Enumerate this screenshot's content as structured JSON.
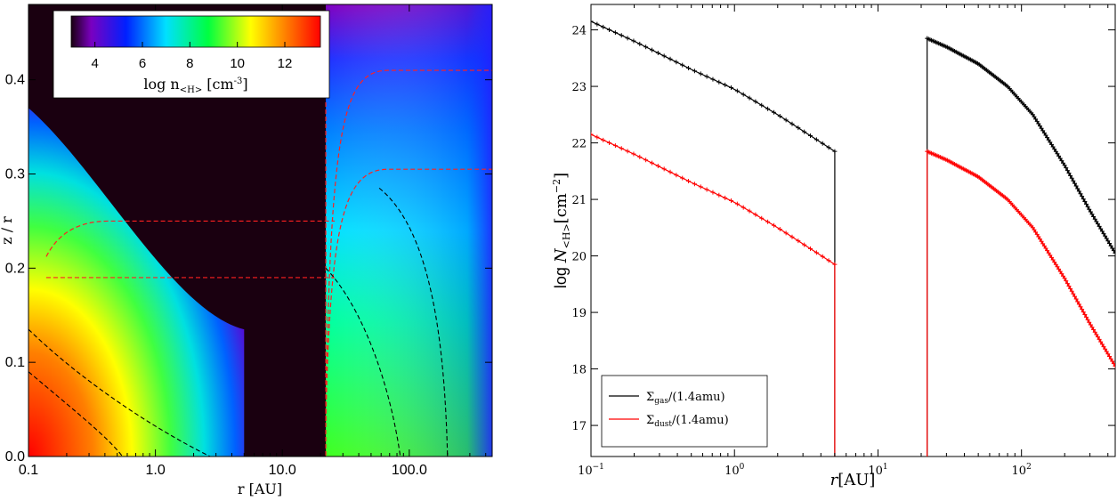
{
  "chart_data": [
    {
      "type": "heatmap",
      "xlabel": "r [AU]",
      "ylabel": "z / r",
      "x_scale": "log",
      "xlim": [
        0.1,
        450
      ],
      "ylim": [
        0.0,
        0.48
      ],
      "x_ticks": [
        "0.1",
        "1.0",
        "10.0",
        "100.0"
      ],
      "y_ticks": [
        "0.0",
        "0.1",
        "0.2",
        "0.3",
        "0.4"
      ],
      "gap_au": [
        5,
        22
      ],
      "colorbar": {
        "label_main": "log n",
        "label_sub": "<H>",
        "label_unit": " [cm",
        "label_exp": "-3",
        "label_close": "]",
        "range": [
          3,
          13.5
        ],
        "ticks": [
          "4",
          "6",
          "8",
          "10",
          "12"
        ],
        "colormap": "rainbow"
      },
      "background_color": "#1a0010",
      "contour_colors": {
        "red": "#ff2020",
        "black": "#000000"
      }
    },
    {
      "type": "line",
      "xlabel": "r[AU]",
      "ylabel_main": "log ",
      "ylabel_n": "N",
      "ylabel_sub": "<H>",
      "ylabel_unit": "[cm",
      "ylabel_exp": "−2",
      "ylabel_close": "]",
      "x_scale": "log",
      "xlim": [
        0.1,
        450
      ],
      "ylim": [
        16.45,
        24.45
      ],
      "x_ticks": [
        {
          "base": "10",
          "exp": "−1"
        },
        {
          "base": "10",
          "exp": "0"
        },
        {
          "base": "10",
          "exp": "1"
        },
        {
          "base": "10",
          "exp": "2"
        }
      ],
      "y_ticks": [
        "17",
        "18",
        "19",
        "20",
        "21",
        "22",
        "23",
        "24"
      ],
      "series": [
        {
          "name_main": "Σ",
          "name_sub": "gas",
          "name_rest": "/(1.4amu)",
          "color": "#000000",
          "segments": [
            {
              "x": [
                0.1,
                0.2,
                0.5,
                1.0,
                2.0,
                5.0
              ],
              "y": [
                24.15,
                23.8,
                23.3,
                22.95,
                22.5,
                21.85
              ]
            },
            {
              "x": [
                22,
                30,
                50,
                80,
                120,
                200,
                300,
                450
              ],
              "y": [
                23.85,
                23.7,
                23.4,
                23.0,
                22.5,
                21.6,
                20.8,
                20.05
              ]
            }
          ]
        },
        {
          "name_main": "Σ",
          "name_sub": "dust",
          "name_rest": "/(1.4amu)",
          "color": "#ff0000",
          "segments": [
            {
              "x": [
                0.1,
                0.2,
                0.5,
                1.0,
                2.0,
                5.0
              ],
              "y": [
                22.15,
                21.8,
                21.3,
                20.95,
                20.5,
                19.85
              ]
            },
            {
              "x": [
                22,
                30,
                50,
                80,
                120,
                200,
                300,
                450
              ],
              "y": [
                21.85,
                21.7,
                21.4,
                21.0,
                20.5,
                19.6,
                18.8,
                18.05
              ]
            }
          ]
        }
      ],
      "legend_position": "lower-left"
    }
  ]
}
